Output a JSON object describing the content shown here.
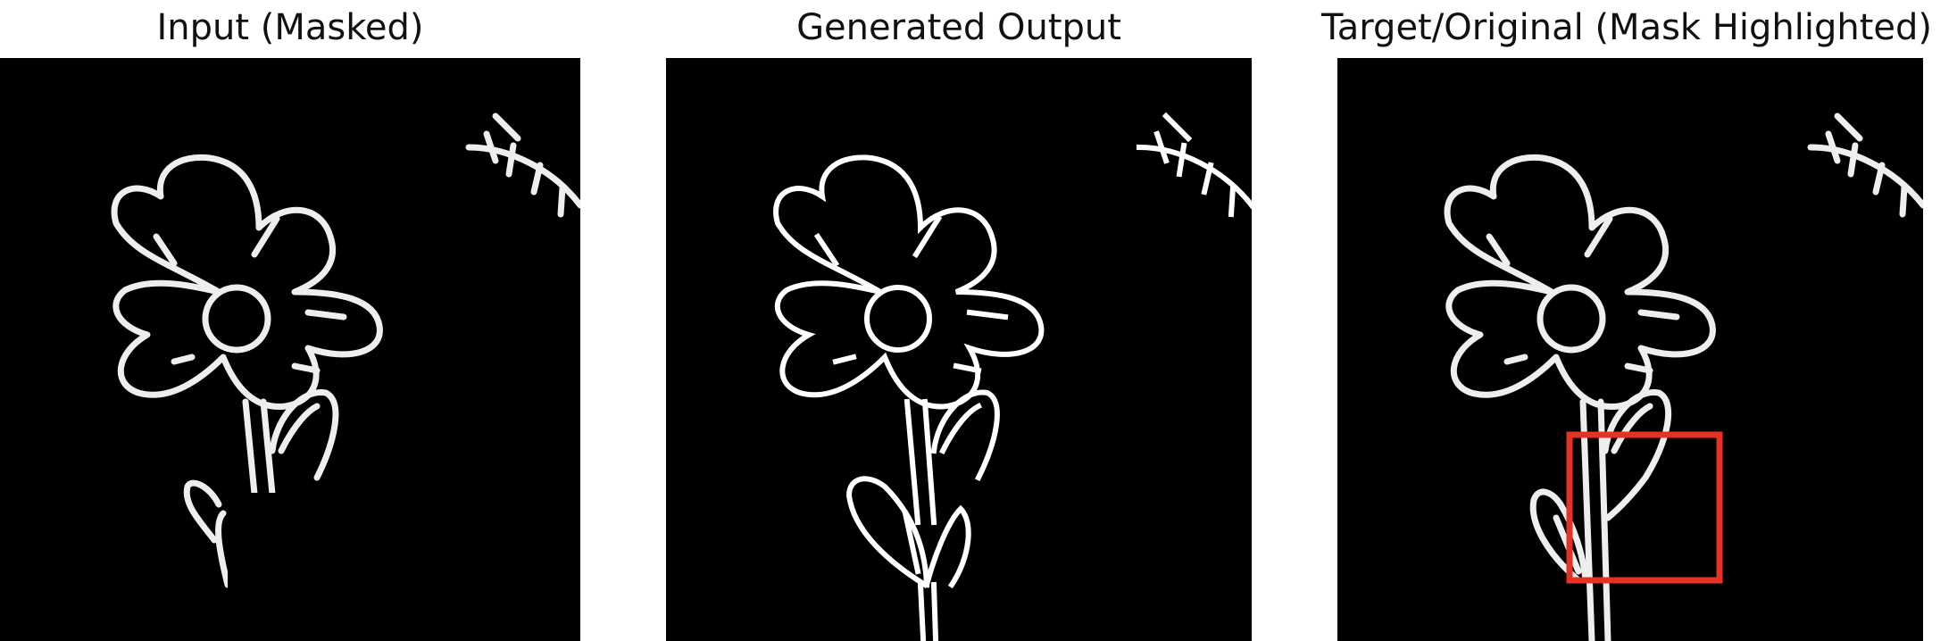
{
  "panels": [
    {
      "title": "Input (Masked)"
    },
    {
      "title": "Generated Output"
    },
    {
      "title": "Target/Original (Mask Highlighted)"
    }
  ],
  "colors": {
    "background": "#000000",
    "stroke": "#eeeeee",
    "mask_box": "#e53225"
  }
}
